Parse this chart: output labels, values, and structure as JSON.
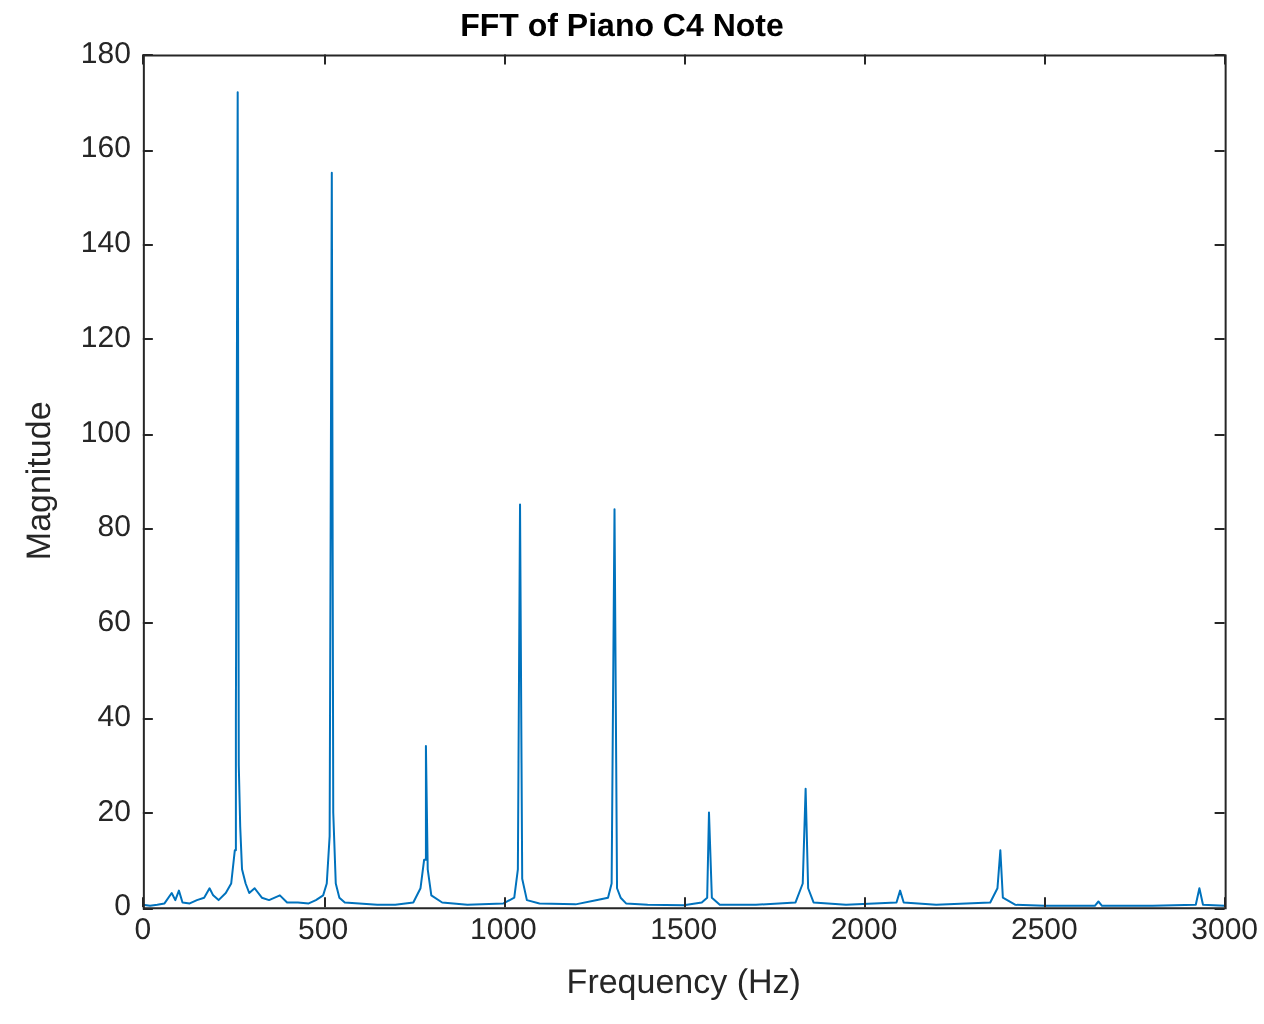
{
  "chart_data": {
    "type": "line",
    "title": "FFT of Piano C4 Note",
    "xlabel": "Frequency (Hz)",
    "ylabel": "Magnitude",
    "xlim": [
      0,
      3000
    ],
    "xticks": [
      0,
      500,
      1000,
      1500,
      2000,
      2500,
      3000
    ],
    "ylim": [
      0,
      180
    ],
    "yticks": [
      0,
      20,
      40,
      60,
      80,
      100,
      120,
      140,
      160,
      180
    ],
    "grid": false,
    "legend": false,
    "marker": "none",
    "line_style": "solid",
    "series": [
      {
        "color": "#0072bd",
        "x": [
          0,
          20,
          40,
          60,
          80,
          90,
          100,
          110,
          130,
          150,
          170,
          185,
          195,
          210,
          230,
          245,
          255,
          258,
          263,
          266,
          270,
          275,
          285,
          295,
          310,
          330,
          350,
          380,
          400,
          430,
          460,
          480,
          500,
          510,
          518,
          524,
          528,
          535,
          545,
          560,
          600,
          650,
          700,
          750,
          770,
          780,
          785,
          790,
          800,
          830,
          900,
          1000,
          1030,
          1040,
          1046,
          1052,
          1065,
          1100,
          1200,
          1260,
          1290,
          1300,
          1308,
          1315,
          1325,
          1340,
          1400,
          1500,
          1550,
          1565,
          1570,
          1578,
          1600,
          1700,
          1810,
          1830,
          1838,
          1845,
          1860,
          1950,
          2090,
          2100,
          2110,
          2200,
          2350,
          2370,
          2378,
          2385,
          2420,
          2500,
          2640,
          2650,
          2660,
          2800,
          2920,
          2930,
          2940,
          3000
        ],
        "values": [
          0.5,
          0.3,
          0.5,
          0.8,
          3,
          1.5,
          3.5,
          1,
          0.8,
          1.5,
          2,
          4,
          2.5,
          1.5,
          3,
          5,
          12,
          40,
          172,
          30,
          17,
          8,
          5,
          3,
          4,
          2,
          1.5,
          2.5,
          1,
          1,
          0.8,
          1.5,
          2.5,
          5,
          15,
          155,
          20,
          5,
          2,
          1,
          0.8,
          0.5,
          0.5,
          1,
          4,
          10,
          34,
          8,
          2.5,
          1,
          0.5,
          0.8,
          2,
          8,
          85,
          6,
          1.5,
          0.8,
          0.6,
          1.5,
          2,
          5,
          84,
          4,
          2,
          0.8,
          0.5,
          0.4,
          1,
          2,
          20,
          2,
          0.5,
          0.5,
          1,
          5,
          25,
          4,
          1,
          0.5,
          1,
          3.5,
          1,
          0.5,
          1,
          4,
          12,
          2,
          0.5,
          0.3,
          0.3,
          1.2,
          0.3,
          0.3,
          0.5,
          4,
          0.5,
          0.3
        ]
      }
    ]
  }
}
